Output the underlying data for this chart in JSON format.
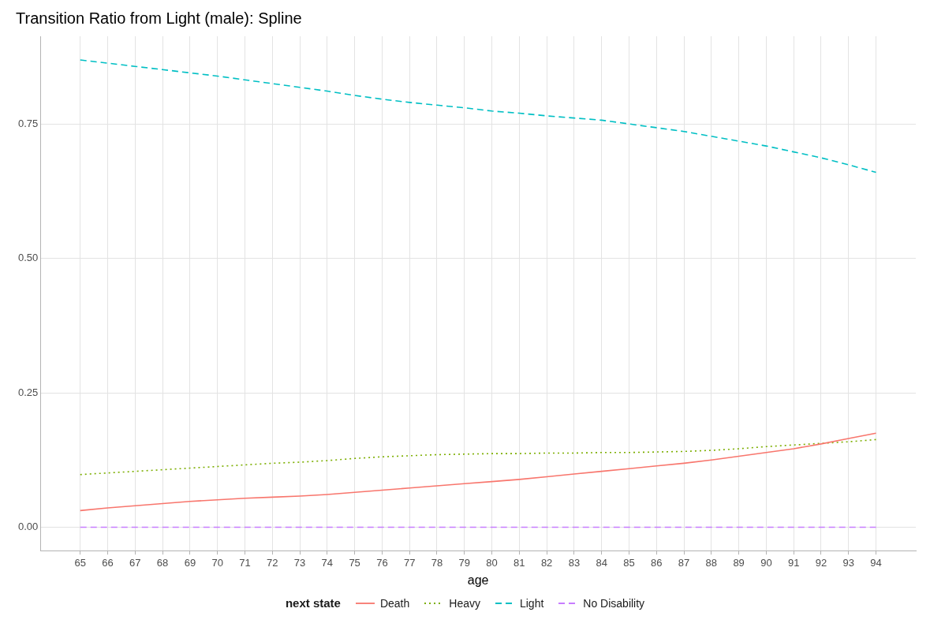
{
  "chart_data": {
    "type": "line",
    "title": "Transition Ratio from Light (male): Spline",
    "xlabel": "age",
    "legend_title": "next state",
    "legend": "bottom",
    "grid": true,
    "marker": "none",
    "x": [
      65,
      66,
      67,
      68,
      69,
      70,
      71,
      72,
      73,
      74,
      75,
      76,
      77,
      78,
      79,
      80,
      81,
      82,
      83,
      84,
      85,
      86,
      87,
      88,
      89,
      90,
      91,
      92,
      93,
      94
    ],
    "xlim": [
      63.55,
      95.45
    ],
    "xticks": [
      65,
      66,
      67,
      68,
      69,
      70,
      71,
      72,
      73,
      74,
      75,
      76,
      77,
      78,
      79,
      80,
      81,
      82,
      83,
      84,
      85,
      86,
      87,
      88,
      89,
      90,
      91,
      92,
      93,
      94
    ],
    "ylim": [
      -0.0435,
      0.913
    ],
    "yticks": [
      {
        "value": 0,
        "label": "0.00"
      },
      {
        "value": 0.25,
        "label": "0.25"
      },
      {
        "value": 0.5,
        "label": "0.50"
      },
      {
        "value": 0.75,
        "label": "0.75"
      }
    ],
    "series": [
      {
        "name": "Death",
        "color": "#f8766d",
        "line_style": "solid",
        "values": [
          0.031,
          0.036,
          0.04,
          0.044,
          0.048,
          0.051,
          0.054,
          0.056,
          0.058,
          0.061,
          0.065,
          0.069,
          0.073,
          0.077,
          0.081,
          0.085,
          0.089,
          0.094,
          0.099,
          0.104,
          0.109,
          0.114,
          0.119,
          0.125,
          0.132,
          0.139,
          0.146,
          0.155,
          0.165,
          0.175
        ]
      },
      {
        "name": "Heavy",
        "color": "#7cae00",
        "line_style": "dotted",
        "values": [
          0.098,
          0.101,
          0.104,
          0.107,
          0.11,
          0.113,
          0.116,
          0.119,
          0.121,
          0.124,
          0.128,
          0.131,
          0.133,
          0.135,
          0.136,
          0.137,
          0.137,
          0.138,
          0.138,
          0.139,
          0.139,
          0.14,
          0.141,
          0.143,
          0.146,
          0.15,
          0.153,
          0.156,
          0.159,
          0.163
        ]
      },
      {
        "name": "Light",
        "color": "#00bfc4",
        "line_style": "dashed",
        "values": [
          0.869,
          0.863,
          0.857,
          0.851,
          0.845,
          0.839,
          0.832,
          0.825,
          0.818,
          0.811,
          0.803,
          0.796,
          0.79,
          0.785,
          0.78,
          0.774,
          0.77,
          0.765,
          0.761,
          0.757,
          0.75,
          0.743,
          0.736,
          0.727,
          0.718,
          0.709,
          0.698,
          0.687,
          0.674,
          0.66
        ]
      },
      {
        "name": "No Disability",
        "color": "#c77cff",
        "line_style": "dashed",
        "values": [
          0,
          0,
          0,
          0,
          0,
          0,
          0,
          0,
          0,
          0,
          0,
          0,
          0,
          0,
          0,
          0,
          0,
          0,
          0,
          0,
          0,
          0,
          0,
          0,
          0,
          0,
          0,
          0,
          0,
          0
        ]
      }
    ]
  }
}
